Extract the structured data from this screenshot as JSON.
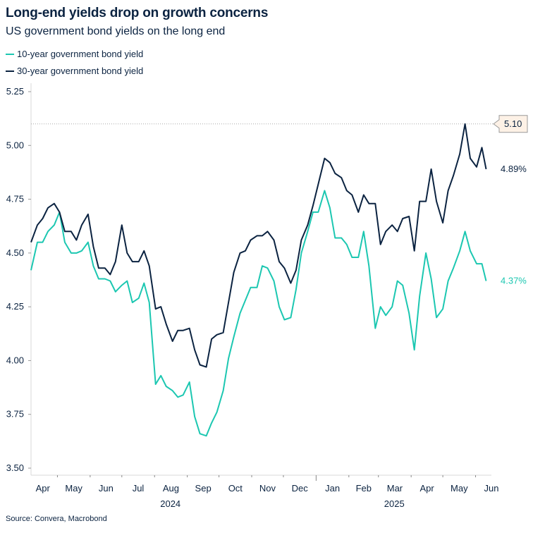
{
  "chart_data": {
    "type": "line",
    "title": "Long-end yields drop on growth concerns",
    "subtitle": "US government bond yields on the long end",
    "source": "Source: Convera, Macrobond",
    "xlabel": "",
    "ylabel": "",
    "ylim": [
      3.5,
      5.25
    ],
    "xlim": [
      "2024-04-06",
      "2025-06-16"
    ],
    "yticks": [
      "5.25",
      "5.00",
      "4.75",
      "4.50",
      "4.25",
      "4.00",
      "3.75",
      "3.50"
    ],
    "ytick_values": [
      5.25,
      5.0,
      4.75,
      4.5,
      4.25,
      4.0,
      3.75,
      3.5
    ],
    "month_labels": [
      "Apr",
      "May",
      "Jun",
      "Jul",
      "Aug",
      "Sep",
      "Oct",
      "Nov",
      "Dec",
      "Jan",
      "Feb",
      "Mar",
      "Apr",
      "May",
      "Jun"
    ],
    "month_starts": [
      "2024-04-01",
      "2024-05-01",
      "2024-06-01",
      "2024-07-01",
      "2024-08-01",
      "2024-09-01",
      "2024-10-01",
      "2024-11-01",
      "2024-12-01",
      "2025-01-01",
      "2025-02-01",
      "2025-03-01",
      "2025-04-01",
      "2025-05-01",
      "2025-06-01"
    ],
    "year_labels": [
      {
        "label": "2024",
        "center": "2024-08-16"
      },
      {
        "label": "2025",
        "center": "2025-03-16"
      }
    ],
    "grid": false,
    "legend_position": "top-left",
    "x": [
      "2024-04-06",
      "2024-04-12",
      "2024-04-17",
      "2024-04-22",
      "2024-04-28",
      "2024-05-03",
      "2024-05-08",
      "2024-05-14",
      "2024-05-19",
      "2024-05-24",
      "2024-05-30",
      "2024-06-04",
      "2024-06-09",
      "2024-06-15",
      "2024-06-20",
      "2024-06-25",
      "2024-07-01",
      "2024-07-06",
      "2024-07-11",
      "2024-07-17",
      "2024-07-22",
      "2024-07-27",
      "2024-08-02",
      "2024-08-07",
      "2024-08-12",
      "2024-08-18",
      "2024-08-23",
      "2024-08-28",
      "2024-09-03",
      "2024-09-08",
      "2024-09-13",
      "2024-09-19",
      "2024-09-24",
      "2024-09-29",
      "2024-10-05",
      "2024-10-10",
      "2024-10-15",
      "2024-10-21",
      "2024-10-26",
      "2024-10-31",
      "2024-11-06",
      "2024-11-11",
      "2024-11-16",
      "2024-11-22",
      "2024-11-27",
      "2024-12-02",
      "2024-12-08",
      "2024-12-13",
      "2024-12-18",
      "2024-12-24",
      "2024-12-29",
      "2025-01-03",
      "2025-01-09",
      "2025-01-14",
      "2025-01-19",
      "2025-01-25",
      "2025-01-30",
      "2025-02-04",
      "2025-02-10",
      "2025-02-15",
      "2025-02-20",
      "2025-02-26",
      "2025-03-03",
      "2025-03-08",
      "2025-03-14",
      "2025-03-19",
      "2025-03-24",
      "2025-03-30",
      "2025-04-04",
      "2025-04-09",
      "2025-04-15",
      "2025-04-20",
      "2025-04-25",
      "2025-05-01",
      "2025-05-06",
      "2025-05-11",
      "2025-05-17",
      "2025-05-22",
      "2025-05-27",
      "2025-06-02",
      "2025-06-07",
      "2025-06-11"
    ],
    "series": [
      {
        "name": "10-year government bond yield",
        "color": "#1cc7b1",
        "end_label": "4.37%",
        "values": [
          4.42,
          4.55,
          4.55,
          4.6,
          4.63,
          4.69,
          4.55,
          4.5,
          4.5,
          4.51,
          4.55,
          4.44,
          4.38,
          4.38,
          4.37,
          4.32,
          4.35,
          4.37,
          4.27,
          4.29,
          4.36,
          4.27,
          3.89,
          3.93,
          3.88,
          3.86,
          3.83,
          3.84,
          3.9,
          3.74,
          3.66,
          3.65,
          3.71,
          3.76,
          3.86,
          4.01,
          4.11,
          4.22,
          4.28,
          4.34,
          4.34,
          4.44,
          4.43,
          4.37,
          4.25,
          4.19,
          4.2,
          4.33,
          4.5,
          4.6,
          4.69,
          4.69,
          4.79,
          4.71,
          4.57,
          4.57,
          4.54,
          4.48,
          4.48,
          4.6,
          4.44,
          4.15,
          4.25,
          4.21,
          4.25,
          4.37,
          4.35,
          4.22,
          4.05,
          4.3,
          4.5,
          4.38,
          4.2,
          4.24,
          4.37,
          4.43,
          4.51,
          4.6,
          4.51,
          4.45,
          4.45,
          4.37
        ]
      },
      {
        "name": "30-year government bond yield",
        "color": "#0b2341",
        "end_label": "4.89%",
        "values": [
          4.55,
          4.63,
          4.66,
          4.71,
          4.73,
          4.69,
          4.6,
          4.6,
          4.56,
          4.63,
          4.68,
          4.53,
          4.43,
          4.43,
          4.4,
          4.46,
          4.63,
          4.5,
          4.46,
          4.46,
          4.51,
          4.44,
          4.24,
          4.25,
          4.17,
          4.09,
          4.14,
          4.14,
          4.15,
          4.05,
          3.98,
          3.97,
          4.1,
          4.12,
          4.13,
          4.27,
          4.41,
          4.5,
          4.51,
          4.56,
          4.58,
          4.58,
          4.6,
          4.56,
          4.46,
          4.43,
          4.36,
          4.42,
          4.56,
          4.63,
          4.72,
          4.82,
          4.94,
          4.92,
          4.87,
          4.85,
          4.79,
          4.77,
          4.69,
          4.77,
          4.73,
          4.73,
          4.54,
          4.6,
          4.63,
          4.6,
          4.66,
          4.67,
          4.51,
          4.74,
          4.74,
          4.89,
          4.74,
          4.64,
          4.79,
          4.86,
          4.96,
          5.1,
          4.94,
          4.9,
          4.99,
          4.89
        ]
      }
    ],
    "annotations": [
      {
        "type": "hline",
        "value": 5.1,
        "style": "dotted",
        "label": "5.10",
        "label_bg": "#fdf1e6"
      }
    ]
  }
}
